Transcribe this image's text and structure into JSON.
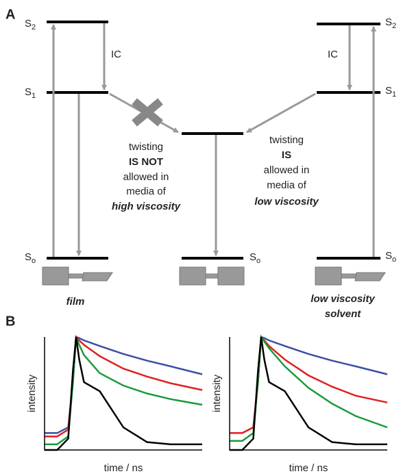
{
  "panel_a": {
    "label": "A",
    "left": {
      "s2": {
        "main": "S",
        "sub": "2"
      },
      "s1": {
        "main": "S",
        "sub": "1"
      },
      "s0": {
        "main": "S",
        "sub": "o"
      },
      "ic": "IC",
      "caption": "film"
    },
    "middle": {
      "s0": {
        "main": "S",
        "sub": "o"
      }
    },
    "right": {
      "s2": {
        "main": "S",
        "sub": "2"
      },
      "s1": {
        "main": "S",
        "sub": "1"
      },
      "s0": {
        "main": "S",
        "sub": "o"
      },
      "ic": "IC",
      "caption": [
        "low viscosity",
        "solvent"
      ]
    },
    "high_text": [
      "twisting",
      "IS NOT",
      "allowed in",
      "media of",
      "high viscosity"
    ],
    "low_text": [
      "twisting",
      "IS",
      "allowed in",
      "media of",
      "low viscosity"
    ]
  },
  "panel_b": {
    "label": "B",
    "chart_data": [
      {
        "type": "line",
        "x_label": "time / ns",
        "y_label": "intensity",
        "xlim": [
          0,
          100
        ],
        "ylim": [
          0,
          1
        ],
        "x": [
          0,
          8,
          15,
          18,
          20,
          22,
          25,
          35,
          50,
          65,
          80,
          100
        ],
        "series": [
          {
            "color": "#3a4fa0",
            "values": [
              0.15,
              0.15,
              0.2,
              0.6,
              1.0,
              0.99,
              0.97,
              0.92,
              0.85,
              0.79,
              0.74,
              0.67
            ]
          },
          {
            "color": "#e02020",
            "values": [
              0.12,
              0.12,
              0.18,
              0.6,
              1.0,
              0.97,
              0.93,
              0.83,
              0.72,
              0.65,
              0.59,
              0.53
            ]
          },
          {
            "color": "#1a9a3a",
            "values": [
              0.05,
              0.05,
              0.12,
              0.6,
              1.0,
              0.93,
              0.84,
              0.68,
              0.57,
              0.5,
              0.45,
              0.4
            ]
          },
          {
            "color": "#000000",
            "values": [
              0,
              0,
              0.1,
              0.7,
              1.0,
              0.8,
              0.6,
              0.52,
              0.2,
              0.07,
              0.05,
              0.05
            ]
          }
        ]
      },
      {
        "type": "line",
        "x_label": "time / ns",
        "y_label": "intensity",
        "xlim": [
          0,
          100
        ],
        "ylim": [
          0,
          1
        ],
        "x": [
          0,
          8,
          15,
          18,
          20,
          22,
          25,
          35,
          50,
          65,
          80,
          100
        ],
        "series": [
          {
            "color": "#3a4fa0",
            "values": [
              0.15,
              0.15,
              0.2,
              0.6,
              1.0,
              0.99,
              0.97,
              0.92,
              0.85,
              0.79,
              0.74,
              0.67
            ]
          },
          {
            "color": "#e02020",
            "values": [
              0.15,
              0.15,
              0.2,
              0.6,
              1.0,
              0.97,
              0.92,
              0.8,
              0.66,
              0.56,
              0.48,
              0.42
            ]
          },
          {
            "color": "#1a9a3a",
            "values": [
              0.08,
              0.08,
              0.15,
              0.6,
              1.0,
              0.96,
              0.9,
              0.74,
              0.55,
              0.41,
              0.3,
              0.2
            ]
          },
          {
            "color": "#000000",
            "values": [
              0,
              0,
              0.1,
              0.7,
              1.0,
              0.8,
              0.6,
              0.52,
              0.2,
              0.07,
              0.05,
              0.05
            ]
          }
        ]
      }
    ]
  }
}
